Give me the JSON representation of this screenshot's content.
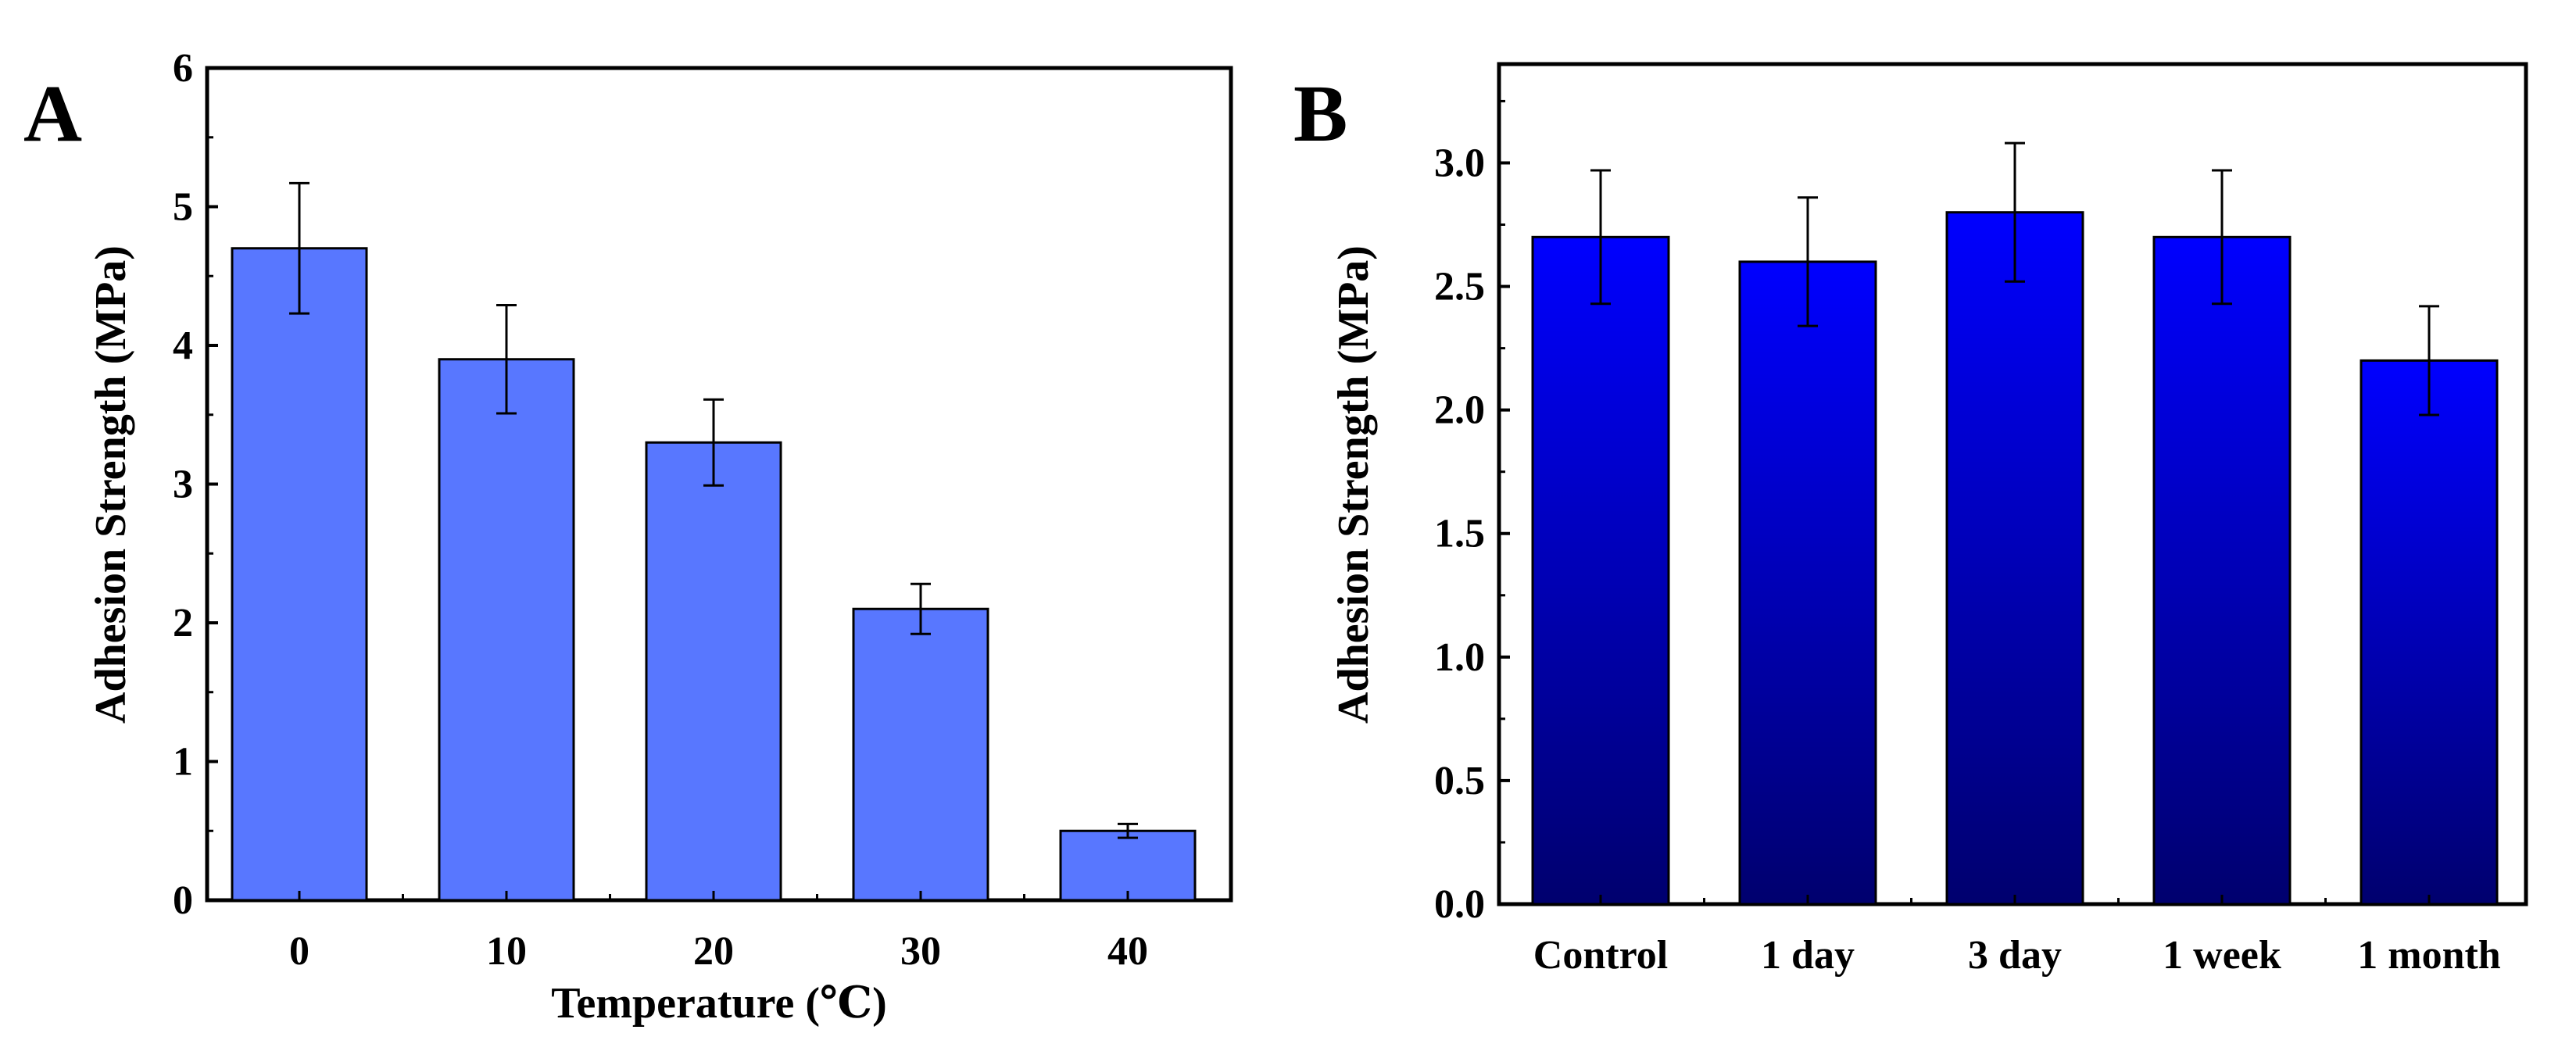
{
  "chart_data": [
    {
      "type": "bar",
      "panel_label": "A",
      "title": "",
      "xlabel": "Temperature (℃)",
      "ylabel": "Adhesion Strength (MPa)",
      "categories": [
        "0",
        "10",
        "20",
        "30",
        "40"
      ],
      "values": [
        4.7,
        3.9,
        3.3,
        2.1,
        0.5
      ],
      "errors": [
        0.47,
        0.39,
        0.31,
        0.18,
        0.05
      ],
      "ylim": [
        0,
        6
      ],
      "yticks": [
        0,
        1,
        2,
        3,
        4,
        5,
        6
      ],
      "ytick_labels": [
        "0",
        "1",
        "2",
        "3",
        "4",
        "5",
        "6"
      ],
      "bar_color": "#5877ff",
      "grid": false
    },
    {
      "type": "bar",
      "panel_label": "B",
      "title": "",
      "xlabel": "",
      "ylabel": "Adhesion Strength (MPa)",
      "categories": [
        "Control",
        "1 day",
        "3 day",
        "1 week",
        "1 month"
      ],
      "values": [
        2.7,
        2.6,
        2.8,
        2.7,
        2.2
      ],
      "errors": [
        0.27,
        0.26,
        0.28,
        0.27,
        0.22
      ],
      "ylim": [
        0,
        3.4
      ],
      "yticks": [
        0,
        0.5,
        1.0,
        1.5,
        2.0,
        2.5,
        3.0
      ],
      "ytick_labels": [
        "0.0",
        "0.5",
        "1.0",
        "1.5",
        "2.0",
        "2.5",
        "3.0"
      ],
      "bar_gradient": [
        "#0000ff",
        "#00006e"
      ],
      "grid": false
    }
  ]
}
